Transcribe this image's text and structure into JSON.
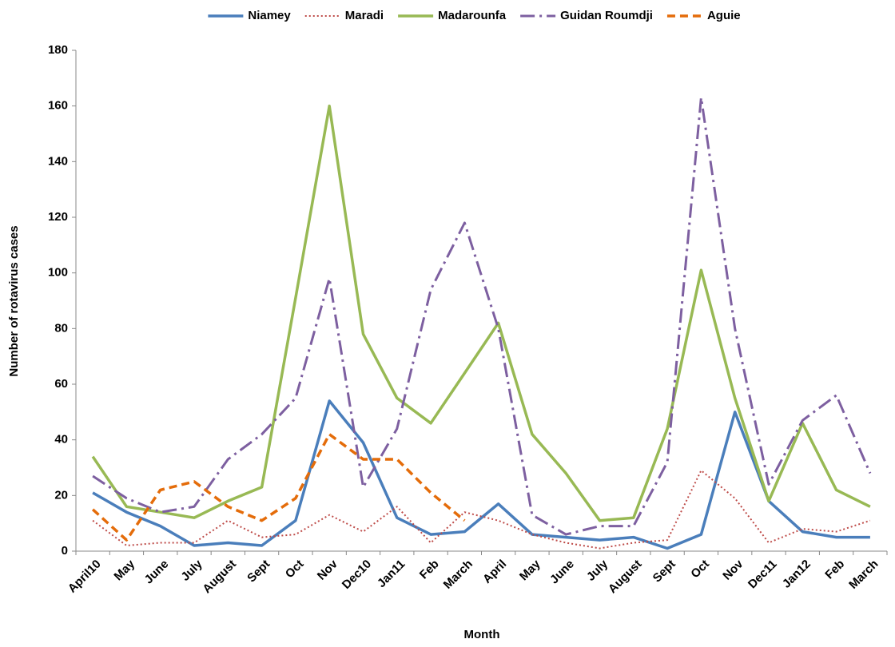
{
  "chart_data": {
    "type": "line",
    "x_label": "Month",
    "y_label": "Number of rotavirus cases",
    "categories": [
      "April10",
      "May",
      "June",
      "July",
      "August",
      "Sept",
      "Oct",
      "Nov",
      "Dec10",
      "Jan11",
      "Feb",
      "March",
      "April",
      "May",
      "June",
      "July",
      "August",
      "Sept",
      "Oct",
      "Nov",
      "Dec11",
      "Jan12",
      "Feb",
      "March"
    ],
    "ylim": [
      0,
      180
    ],
    "yticks": [
      0,
      20,
      40,
      60,
      80,
      100,
      120,
      140,
      160,
      180
    ],
    "grid": false,
    "legend": "top",
    "series": [
      {
        "name": "Niamey",
        "color": "#4a7ebb",
        "style": "solid",
        "values": [
          21,
          14,
          9,
          2,
          3,
          2,
          11,
          54,
          39,
          12,
          6,
          7,
          17,
          6,
          5,
          4,
          5,
          1,
          6,
          50,
          18,
          7,
          5,
          5
        ]
      },
      {
        "name": "Maradi",
        "color": "#be4b48",
        "style": "dotted",
        "values": [
          11,
          2,
          3,
          3,
          11,
          5,
          6,
          13,
          7,
          16,
          3,
          14,
          11,
          6,
          3,
          1,
          3,
          4,
          29,
          19,
          3,
          8,
          7,
          11
        ]
      },
      {
        "name": "Madarounfa",
        "color": "#98b954",
        "style": "solid",
        "values": [
          34,
          16,
          14,
          12,
          18,
          23,
          91,
          160,
          78,
          55,
          46,
          64,
          82,
          42,
          28,
          11,
          12,
          44,
          101,
          55,
          18,
          46,
          22,
          16
        ]
      },
      {
        "name": "Guidan Roumdji",
        "color": "#7d5fa0",
        "style": "dashdot",
        "values": [
          27,
          19,
          14,
          16,
          33,
          42,
          55,
          98,
          23,
          44,
          94,
          118,
          80,
          13,
          6,
          9,
          9,
          32,
          163,
          80,
          24,
          47,
          56,
          28
        ]
      },
      {
        "name": "Aguie",
        "color": "#e46c0a",
        "style": "dashed",
        "values": [
          15,
          4,
          22,
          25,
          16,
          11,
          19,
          42,
          33,
          33,
          21,
          11,
          null,
          null,
          null,
          null,
          null,
          null,
          null,
          null,
          null,
          null,
          null,
          null
        ]
      }
    ]
  }
}
